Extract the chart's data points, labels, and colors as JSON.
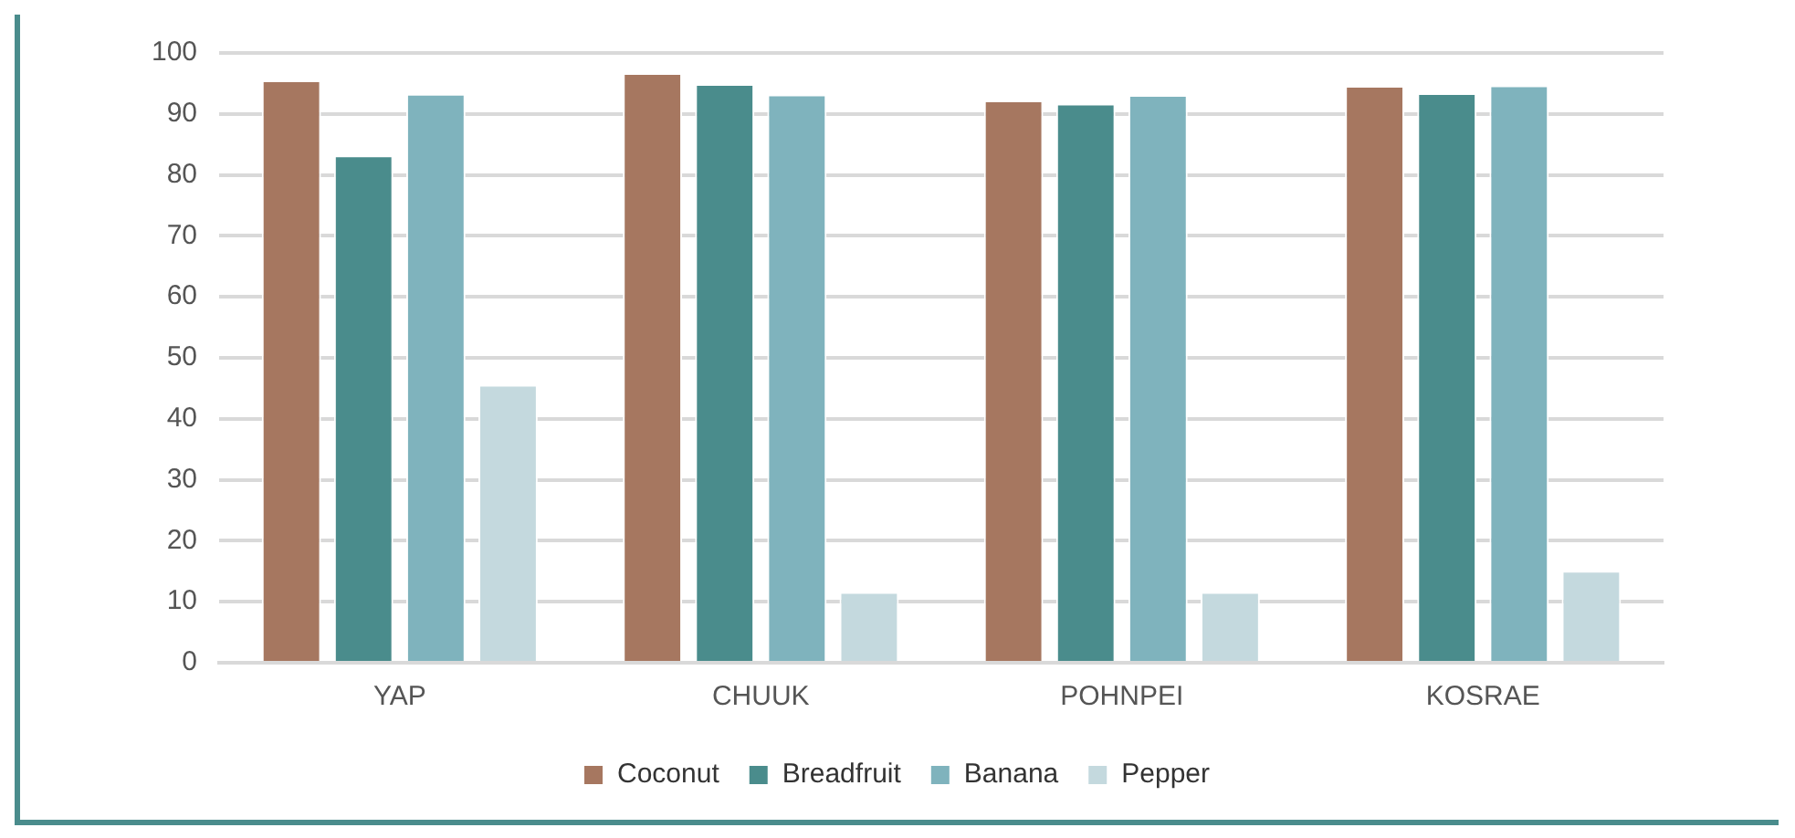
{
  "chart_data": {
    "type": "bar",
    "categories": [
      "YAP",
      "CHUUK",
      "POHNPEI",
      "KOSRAE"
    ],
    "series": [
      {
        "name": "Coconut",
        "color": "#a67760",
        "values": [
          95.5,
          96.7,
          92.2,
          94.6
        ]
      },
      {
        "name": "Breadfruit",
        "color": "#4a8c8c",
        "values": [
          83.2,
          94.9,
          91.7,
          93.4
        ]
      },
      {
        "name": "Banana",
        "color": "#7fb3bd",
        "values": [
          93.3,
          93.2,
          93.1,
          94.7
        ]
      },
      {
        "name": "Pepper",
        "color": "#c4d9de",
        "values": [
          45.6,
          11.6,
          11.6,
          15.1
        ]
      }
    ],
    "ylim": [
      0,
      100
    ],
    "yticks": [
      0,
      10,
      20,
      30,
      40,
      50,
      60,
      70,
      80,
      90,
      100
    ],
    "grid": "y",
    "legend": "bottom"
  }
}
